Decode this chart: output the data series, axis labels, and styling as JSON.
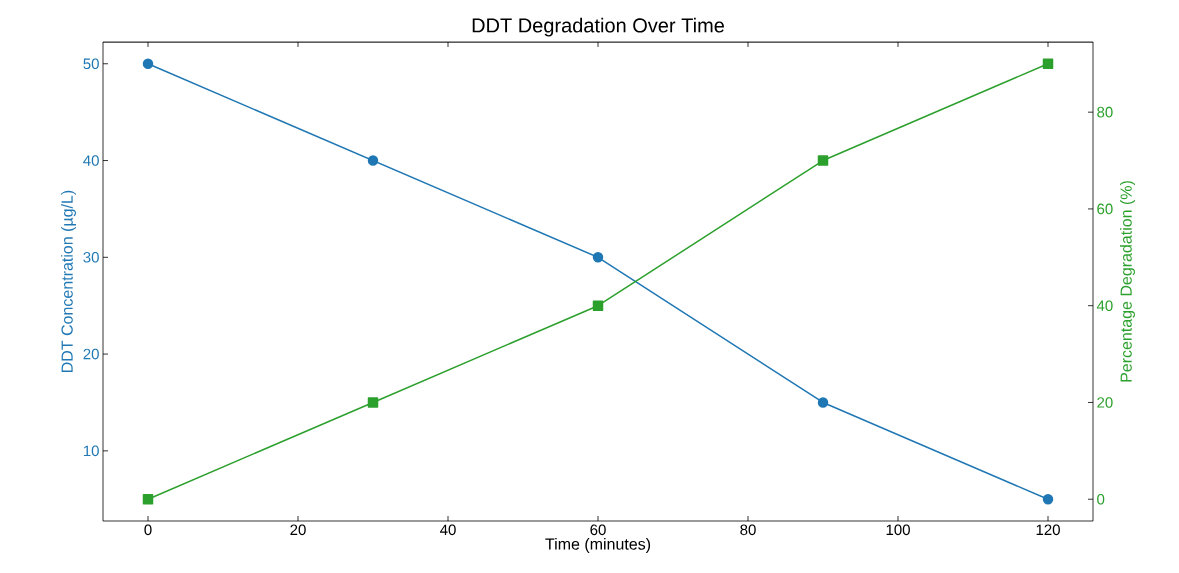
{
  "chart_data": {
    "type": "line",
    "title": "DDT Degradation Over Time",
    "xlabel": "Time (minutes)",
    "ylabel": "DDT Concentration (µg/L)",
    "y2label": "Percentage Degradation (%)",
    "x": [
      0,
      30,
      60,
      90,
      120
    ],
    "series": [
      {
        "color": "#1f77b4",
        "marker": "circle",
        "values": [
          50,
          40,
          30,
          15,
          5
        ]
      },
      {
        "color": "#2ca02c",
        "marker": "square",
        "axis": "y2",
        "values": [
          0,
          20,
          40,
          70,
          90
        ]
      }
    ],
    "xlim": [
      -6,
      126
    ],
    "xticks": [
      0,
      20,
      40,
      60,
      80,
      100,
      120
    ],
    "ylim": [
      2.75,
      52.25
    ],
    "yticks": [
      10,
      20,
      30,
      40,
      50
    ],
    "y2lim": [
      -4.5,
      94.5
    ],
    "y2ticks": [
      0,
      20,
      40,
      60,
      80
    ],
    "grid": false,
    "line_style": "solid"
  }
}
